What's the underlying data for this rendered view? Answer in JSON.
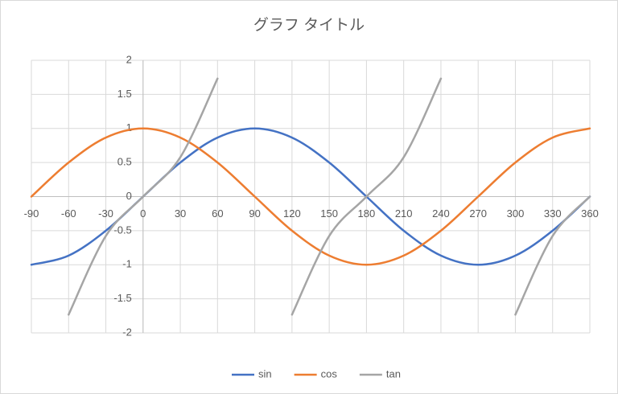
{
  "chart_data": {
    "type": "scatter",
    "title": "グラフ タイトル",
    "x": [
      -90,
      -60,
      -30,
      0,
      30,
      60,
      90,
      120,
      150,
      180,
      210,
      240,
      270,
      300,
      330,
      360
    ],
    "series": [
      {
        "name": "sin",
        "color": "#4472c4",
        "values": [
          -1,
          -0.866,
          -0.5,
          0,
          0.5,
          0.866,
          1,
          0.866,
          0.5,
          0,
          -0.5,
          -0.866,
          -1,
          -0.866,
          -0.5,
          0
        ]
      },
      {
        "name": "cos",
        "color": "#ed7d31",
        "values": [
          0,
          0.5,
          0.866,
          1,
          0.866,
          0.5,
          0,
          -0.5,
          -0.866,
          -1,
          -0.866,
          -0.5,
          0,
          0.5,
          0.866,
          1
        ]
      },
      {
        "name": "tan",
        "color": "#a5a5a5",
        "values": [
          null,
          -1.732,
          -0.577,
          0,
          0.577,
          1.732,
          null,
          -1.732,
          -0.577,
          0,
          0.577,
          1.732,
          null,
          -1.732,
          -0.577,
          0
        ]
      }
    ],
    "xlim": [
      -90,
      360
    ],
    "xticks": [
      -90,
      -60,
      -30,
      0,
      30,
      60,
      90,
      120,
      150,
      180,
      210,
      240,
      270,
      300,
      330,
      360
    ],
    "ylim": [
      -2,
      2
    ],
    "yticks": [
      -2,
      -1.5,
      -1,
      -0.5,
      0,
      0.5,
      1,
      1.5,
      2
    ],
    "grid": true,
    "legend": "bottom",
    "smooth": true
  }
}
